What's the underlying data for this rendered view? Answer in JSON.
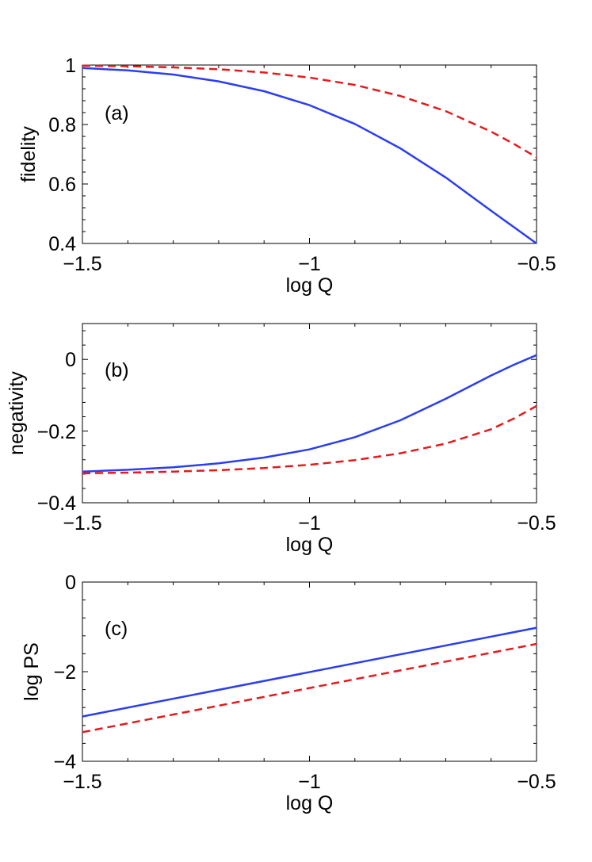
{
  "chart_data": [
    {
      "type": "line",
      "panel_label": "(a)",
      "xlabel": "log Q",
      "ylabel": "fidelity",
      "xlim": [
        -1.5,
        -0.5
      ],
      "ylim": [
        0.4,
        1
      ],
      "xticks": [
        -1.5,
        -1,
        -0.5
      ],
      "xtick_labels": [
        "−1.5",
        "−1",
        "−0.5"
      ],
      "yticks": [
        0.4,
        0.6,
        0.8,
        1
      ],
      "ytick_labels": [
        "0.4",
        "0.6",
        "0.8",
        "1"
      ],
      "grid": false,
      "series": [
        {
          "name": "solid",
          "color": "#2b3ef0",
          "dash": "solid",
          "x": [
            -1.5,
            -1.4,
            -1.3,
            -1.2,
            -1.1,
            -1.0,
            -0.9,
            -0.8,
            -0.7,
            -0.6,
            -0.55,
            -0.5
          ],
          "y": [
            0.99,
            0.982,
            0.968,
            0.945,
            0.912,
            0.865,
            0.802,
            0.72,
            0.622,
            0.51,
            0.455,
            0.4
          ]
        },
        {
          "name": "dashed",
          "color": "#e41a1c",
          "dash": "dashed",
          "x": [
            -1.5,
            -1.4,
            -1.3,
            -1.2,
            -1.1,
            -1.0,
            -0.9,
            -0.8,
            -0.7,
            -0.6,
            -0.55,
            -0.5
          ],
          "y": [
            0.998,
            0.996,
            0.992,
            0.986,
            0.975,
            0.958,
            0.933,
            0.896,
            0.845,
            0.776,
            0.735,
            0.69
          ]
        }
      ]
    },
    {
      "type": "line",
      "panel_label": "(b)",
      "xlabel": "log Q",
      "ylabel": "negativity",
      "xlim": [
        -1.5,
        -0.5
      ],
      "ylim": [
        -0.4,
        0.1
      ],
      "xticks": [
        -1.5,
        -1,
        -0.5
      ],
      "xtick_labels": [
        "−1.5",
        "−1",
        "−0.5"
      ],
      "yticks": [
        -0.4,
        -0.2,
        0
      ],
      "ytick_labels": [
        "−0.4",
        "−0.2",
        "0"
      ],
      "grid": false,
      "series": [
        {
          "name": "solid",
          "color": "#2b3ef0",
          "dash": "solid",
          "x": [
            -1.5,
            -1.4,
            -1.3,
            -1.2,
            -1.1,
            -1.0,
            -0.9,
            -0.8,
            -0.7,
            -0.6,
            -0.55,
            -0.5
          ],
          "y": [
            -0.313,
            -0.308,
            -0.301,
            -0.29,
            -0.274,
            -0.251,
            -0.217,
            -0.17,
            -0.11,
            -0.045,
            -0.015,
            0.012
          ]
        },
        {
          "name": "dashed",
          "color": "#e41a1c",
          "dash": "dashed",
          "x": [
            -1.5,
            -1.4,
            -1.3,
            -1.2,
            -1.1,
            -1.0,
            -0.9,
            -0.8,
            -0.7,
            -0.6,
            -0.55,
            -0.5
          ],
          "y": [
            -0.318,
            -0.316,
            -0.313,
            -0.309,
            -0.303,
            -0.294,
            -0.281,
            -0.262,
            -0.235,
            -0.195,
            -0.165,
            -0.13
          ]
        }
      ]
    },
    {
      "type": "line",
      "panel_label": "(c)",
      "xlabel": "log Q",
      "ylabel": "log PS",
      "xlim": [
        -1.5,
        -0.5
      ],
      "ylim": [
        -4,
        0
      ],
      "xticks": [
        -1.5,
        -1,
        -0.5
      ],
      "xtick_labels": [
        "−1.5",
        "−1",
        "−0.5"
      ],
      "yticks": [
        -4,
        -2,
        0
      ],
      "ytick_labels": [
        "−4",
        "−2",
        "0"
      ],
      "grid": false,
      "series": [
        {
          "name": "solid",
          "color": "#2b3ef0",
          "dash": "solid",
          "x": [
            -1.5,
            -0.5
          ],
          "y": [
            -3.0,
            -1.02
          ]
        },
        {
          "name": "dashed",
          "color": "#e41a1c",
          "dash": "dashed",
          "x": [
            -1.5,
            -0.5
          ],
          "y": [
            -3.35,
            -1.38
          ]
        }
      ]
    }
  ]
}
